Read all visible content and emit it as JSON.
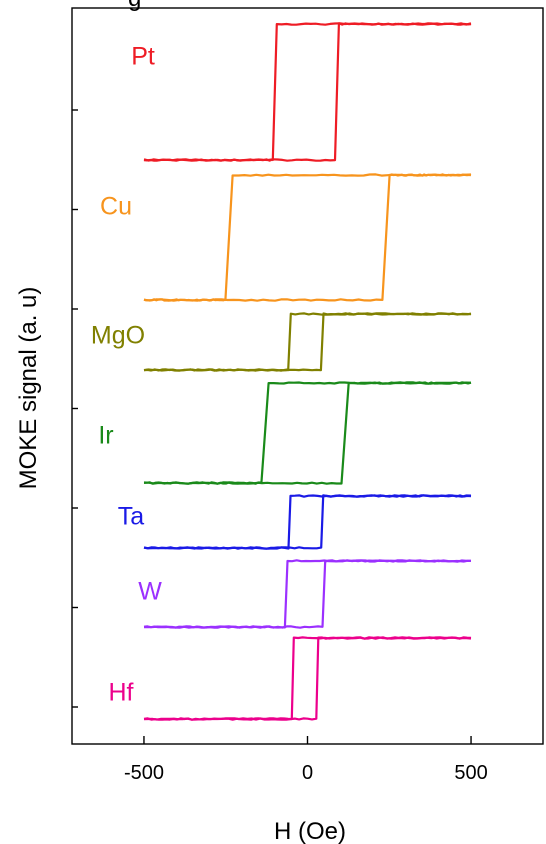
{
  "chart_data": {
    "type": "line",
    "title": "g",
    "xlabel": "H (Oe)",
    "ylabel": "MOKE signal (a. u)",
    "xlim": [
      -720,
      720
    ],
    "x_ticks": [
      -500,
      0,
      500
    ],
    "x_tick_labels": [
      "-500",
      "0",
      "500"
    ],
    "y_tick_count": 7,
    "grid": false,
    "legend": "none",
    "series": [
      {
        "name": "Pt",
        "color": "#ee1c25",
        "field_range": [
          -500,
          500
        ],
        "descending_switch": -100,
        "ascending_switch": 90,
        "switch_width": 12
      },
      {
        "name": "Cu",
        "color": "#f7941d",
        "field_range": [
          -500,
          500
        ],
        "descending_switch": -240,
        "ascending_switch": 240,
        "switch_width": 22
      },
      {
        "name": "MgO",
        "color": "#808000",
        "field_range": [
          -500,
          500
        ],
        "descending_switch": -55,
        "ascending_switch": 45,
        "switch_width": 8
      },
      {
        "name": "Ir",
        "color": "#1a8a1a",
        "field_range": [
          -500,
          500
        ],
        "descending_switch": -130,
        "ascending_switch": 115,
        "switch_width": 22
      },
      {
        "name": "Ta",
        "color": "#1a1ae6",
        "field_range": [
          -500,
          500
        ],
        "descending_switch": -55,
        "ascending_switch": 45,
        "switch_width": 6
      },
      {
        "name": "W",
        "color": "#9b30ff",
        "field_range": [
          -500,
          500
        ],
        "descending_switch": -65,
        "ascending_switch": 50,
        "switch_width": 8
      },
      {
        "name": "Hf",
        "color": "#ec008c",
        "field_range": [
          -500,
          500
        ],
        "descending_switch": -45,
        "ascending_switch": 30,
        "switch_width": 6
      }
    ]
  }
}
